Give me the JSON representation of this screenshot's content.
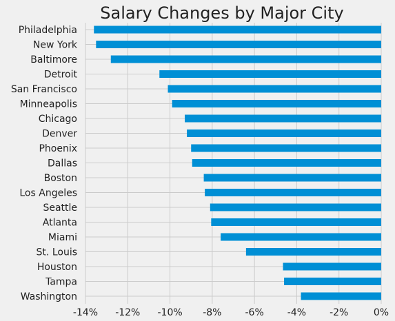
{
  "chart_data": {
    "type": "bar",
    "orientation": "horizontal",
    "title": "Salary Changes by Major City",
    "xlabel": "",
    "ylabel": "",
    "categories": [
      "Philadelphia",
      "New York",
      "Baltimore",
      "Detroit",
      "San Francisco",
      "Minneapolis",
      "Chicago",
      "Denver",
      "Phoenix",
      "Dallas",
      "Boston",
      "Los Angeles",
      "Seattle",
      "Atlanta",
      "Miami",
      "St. Louis",
      "Houston",
      "Tampa",
      "Washington"
    ],
    "values": [
      -13.6,
      -13.5,
      -12.8,
      -10.5,
      -10.1,
      -9.9,
      -9.3,
      -9.2,
      -9.0,
      -8.95,
      -8.4,
      -8.35,
      -8.1,
      -8.05,
      -7.6,
      -6.4,
      -4.65,
      -4.6,
      -3.8
    ],
    "unit": "%",
    "xlim": [
      -14,
      0
    ],
    "xticks": [
      -14,
      -12,
      -10,
      -8,
      -6,
      -4,
      -2,
      0
    ],
    "xtick_labels": [
      "-14%",
      "-12%",
      "-10%",
      "-8%",
      "-6%",
      "-4%",
      "-2%",
      "0%"
    ],
    "grid": true,
    "legend": "none",
    "colors": {
      "bar": "#008fd5",
      "background": "#f0f0f0",
      "grid": "#cbcbcb",
      "text": "#222222"
    }
  }
}
